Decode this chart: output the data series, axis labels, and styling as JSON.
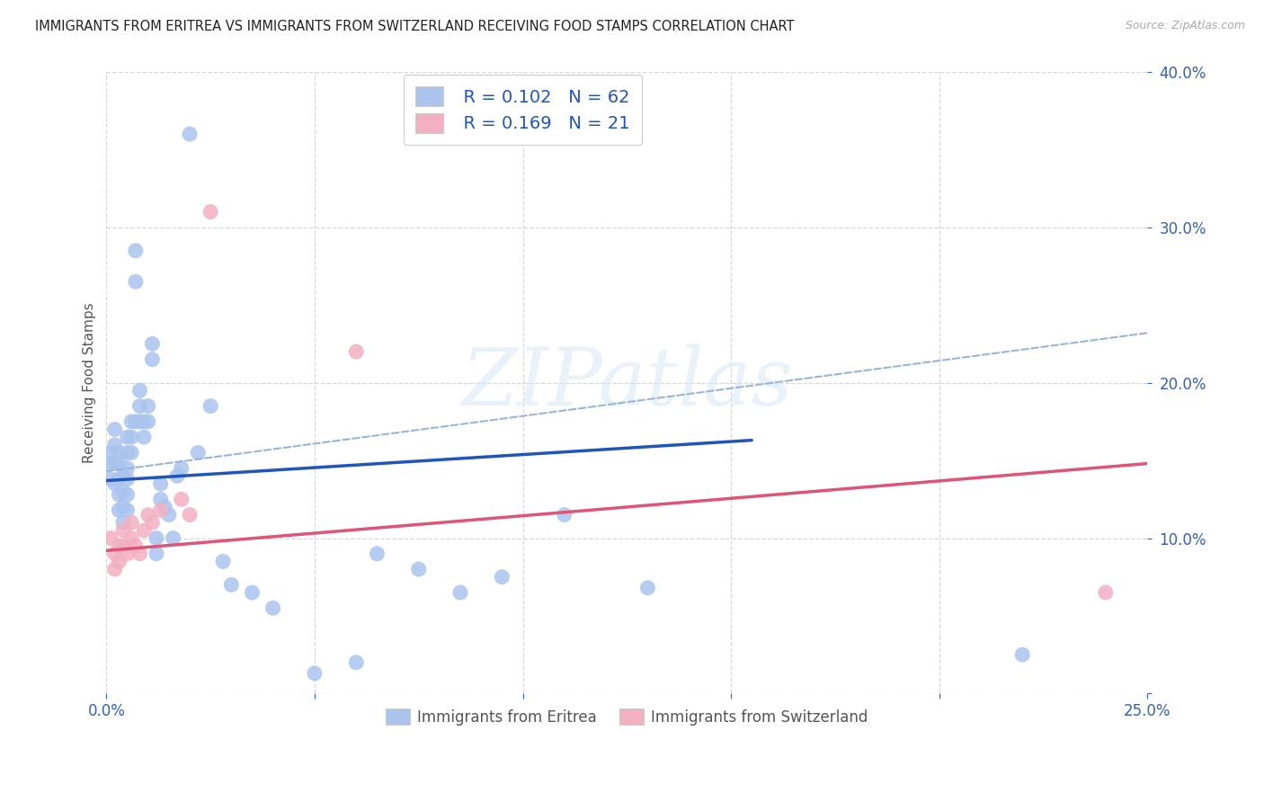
{
  "title": "IMMIGRANTS FROM ERITREA VS IMMIGRANTS FROM SWITZERLAND RECEIVING FOOD STAMPS CORRELATION CHART",
  "source": "Source: ZipAtlas.com",
  "ylabel": "Receiving Food Stamps",
  "xlim": [
    0.0,
    0.25
  ],
  "ylim": [
    0.0,
    0.4
  ],
  "xticks": [
    0.0,
    0.05,
    0.1,
    0.15,
    0.2,
    0.25
  ],
  "yticks": [
    0.0,
    0.1,
    0.2,
    0.3,
    0.4
  ],
  "eritrea_color": "#aac4ee",
  "switzerland_color": "#f2b0c2",
  "eritrea_line_color": "#2255bb",
  "switzerland_line_color": "#dd5577",
  "dashed_line_color": "#9bb5d8",
  "background_color": "#ffffff",
  "grid_color": "#d8d8d8",
  "watermark_text": "ZIPatlas",
  "legend_labels": [
    "Immigrants from Eritrea",
    "Immigrants from Switzerland"
  ],
  "legend_R": [
    "R = 0.102",
    "R = 0.169"
  ],
  "legend_N": [
    "N = 62",
    "N = 21"
  ],
  "eritrea_x": [
    0.001,
    0.001,
    0.001,
    0.002,
    0.002,
    0.002,
    0.002,
    0.003,
    0.003,
    0.003,
    0.003,
    0.003,
    0.004,
    0.004,
    0.004,
    0.004,
    0.005,
    0.005,
    0.005,
    0.005,
    0.005,
    0.005,
    0.006,
    0.006,
    0.006,
    0.007,
    0.007,
    0.007,
    0.008,
    0.008,
    0.008,
    0.009,
    0.009,
    0.01,
    0.01,
    0.011,
    0.011,
    0.012,
    0.012,
    0.013,
    0.013,
    0.014,
    0.015,
    0.016,
    0.017,
    0.018,
    0.02,
    0.022,
    0.025,
    0.028,
    0.03,
    0.035,
    0.04,
    0.05,
    0.06,
    0.065,
    0.075,
    0.085,
    0.095,
    0.11,
    0.13,
    0.22
  ],
  "eritrea_y": [
    0.155,
    0.148,
    0.138,
    0.17,
    0.16,
    0.148,
    0.135,
    0.155,
    0.148,
    0.138,
    0.128,
    0.118,
    0.14,
    0.13,
    0.12,
    0.11,
    0.165,
    0.155,
    0.145,
    0.138,
    0.128,
    0.118,
    0.175,
    0.165,
    0.155,
    0.285,
    0.265,
    0.175,
    0.195,
    0.185,
    0.175,
    0.175,
    0.165,
    0.185,
    0.175,
    0.225,
    0.215,
    0.1,
    0.09,
    0.135,
    0.125,
    0.12,
    0.115,
    0.1,
    0.14,
    0.145,
    0.36,
    0.155,
    0.185,
    0.085,
    0.07,
    0.065,
    0.055,
    0.013,
    0.02,
    0.09,
    0.08,
    0.065,
    0.075,
    0.115,
    0.068,
    0.025
  ],
  "switzerland_x": [
    0.001,
    0.002,
    0.002,
    0.003,
    0.003,
    0.004,
    0.004,
    0.005,
    0.006,
    0.006,
    0.007,
    0.008,
    0.009,
    0.01,
    0.011,
    0.013,
    0.018,
    0.02,
    0.025,
    0.06,
    0.24
  ],
  "switzerland_y": [
    0.1,
    0.09,
    0.08,
    0.095,
    0.085,
    0.105,
    0.095,
    0.09,
    0.11,
    0.1,
    0.095,
    0.09,
    0.105,
    0.115,
    0.11,
    0.118,
    0.125,
    0.115,
    0.31,
    0.22,
    0.065
  ],
  "eritrea_trend_x": [
    0.0,
    0.155
  ],
  "eritrea_trend_y": [
    0.137,
    0.163
  ],
  "switzerland_trend_x": [
    0.0,
    0.25
  ],
  "switzerland_trend_y": [
    0.092,
    0.148
  ],
  "dashed_trend_x": [
    0.0,
    0.25
  ],
  "dashed_trend_y": [
    0.143,
    0.232
  ]
}
